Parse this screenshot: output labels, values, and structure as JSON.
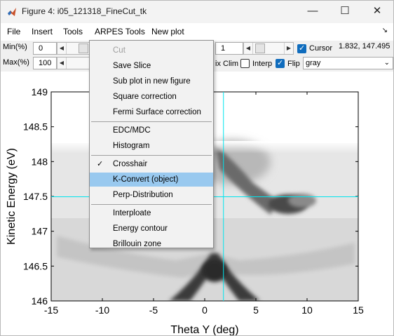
{
  "window": {
    "title": "Figure 4: i05_121318_FineCut_tk",
    "controls": {
      "minimize": "—",
      "maximize": "☐",
      "close": "✕"
    }
  },
  "menubar": {
    "items": [
      "File",
      "Insert",
      "Tools",
      "ARPES Tools",
      "New plot"
    ],
    "overflow_arrow": "↘"
  },
  "toolbar": {
    "min_label": "Min(%)",
    "min_value": "0",
    "max_label": "Max(%)",
    "max_value": "100",
    "field3_value": "1",
    "cursor_label": "Cursor",
    "cursor_checked": true,
    "cursor_readout": "1.832, 147.495",
    "fix_clim_label": "ix Clim",
    "interp_label": "Interp",
    "interp_checked": false,
    "flip_label": "Flip",
    "flip_checked": true,
    "colormap_value": "gray"
  },
  "arpes_menu": {
    "items": [
      {
        "label": "Cut",
        "disabled": true
      },
      {
        "label": "Save Slice"
      },
      {
        "label": "Sub plot in new figure"
      },
      {
        "label": "Square correction"
      },
      {
        "label": "Fermi Surface correction"
      },
      {
        "label": "EDC/MDC",
        "separator_before": true
      },
      {
        "label": "Histogram"
      },
      {
        "label": "Crosshair",
        "separator_before": true,
        "checked": true
      },
      {
        "label": "K-Convert (object)",
        "highlighted": true
      },
      {
        "label": "Perp-Distribution"
      },
      {
        "label": "Interploate",
        "separator_before": true
      },
      {
        "label": "Energy contour"
      },
      {
        "label": "Brillouin zone"
      }
    ],
    "check_glyph": "✓"
  },
  "chart_data": {
    "type": "heatmap",
    "xlabel": "Theta Y (deg)",
    "ylabel": "Kinetic Energy (eV)",
    "xlim": [
      -15,
      15
    ],
    "ylim": [
      146,
      149
    ],
    "x_ticks": [
      -15,
      -10,
      -5,
      0,
      5,
      10,
      15
    ],
    "y_ticks": [
      146,
      146.5,
      147,
      147.5,
      148,
      148.5,
      149
    ],
    "colormap": "gray (flipped)",
    "cursor": {
      "x": 1.832,
      "y": 147.495,
      "color": "#00e5ee"
    },
    "data_extent_y": [
      146,
      148.25
    ]
  }
}
